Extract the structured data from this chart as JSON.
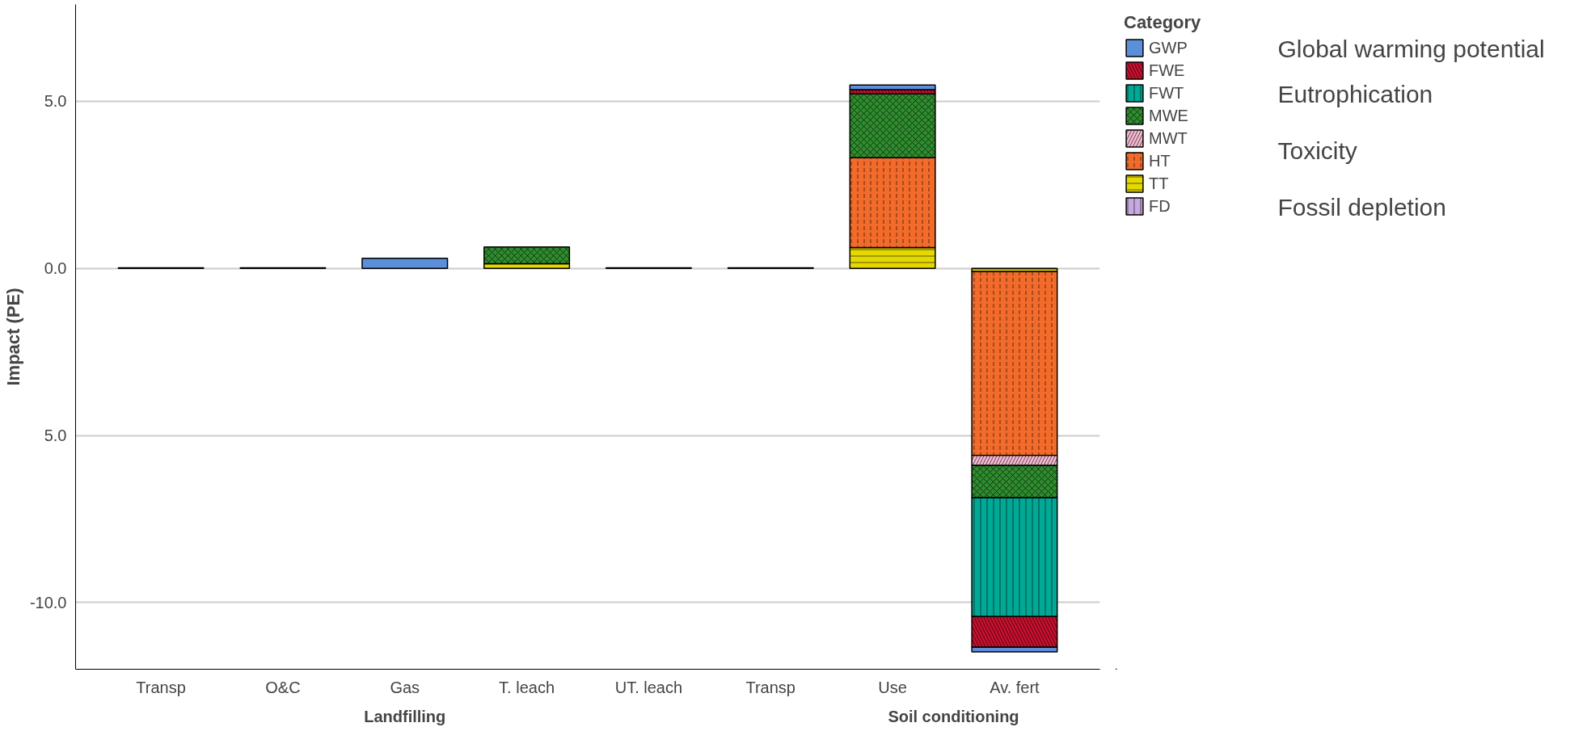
{
  "chart_data": {
    "type": "bar",
    "stacked": true,
    "ylabel": "Impact (PE)",
    "legend_title": "Category",
    "legend": "right",
    "grid": "y",
    "categories": [
      "Transp",
      "O&C",
      "Gas",
      "T. leach",
      "UT. leach",
      "Transp",
      "Use",
      "Av. fert"
    ],
    "ylim": [
      -12,
      7.9
    ],
    "yticks": [
      {
        "value": 5,
        "label": "5.0"
      },
      {
        "value": 0,
        "label": "0.0"
      },
      {
        "value": -5,
        "label": "5.0"
      },
      {
        "value": -10,
        "label": "-10.0"
      }
    ],
    "series": [
      {
        "name": "FD",
        "color": "#c8a8e0",
        "values": [
          null,
          null,
          null,
          null,
          null,
          null,
          null,
          null
        ]
      },
      {
        "name": "TT",
        "color": "#e5d800",
        "values": [
          null,
          null,
          null,
          0.14,
          null,
          null,
          0.62,
          -0.1
        ]
      },
      {
        "name": "HT",
        "color": "#f26b2a",
        "values": [
          null,
          null,
          null,
          null,
          null,
          null,
          2.69,
          -5.5
        ]
      },
      {
        "name": "MWT",
        "color": "#f4b8d0",
        "values": [
          null,
          null,
          null,
          null,
          null,
          null,
          null,
          -0.3
        ]
      },
      {
        "name": "MWE",
        "color": "#2e8b2e",
        "values": [
          null,
          null,
          null,
          0.5,
          null,
          null,
          1.91,
          -0.97
        ]
      },
      {
        "name": "FWT",
        "color": "#00a896",
        "values": [
          null,
          null,
          null,
          null,
          null,
          null,
          null,
          -3.55
        ]
      },
      {
        "name": "FWE",
        "color": "#c8102e",
        "values": [
          null,
          null,
          null,
          null,
          null,
          null,
          0.13,
          -0.92
        ]
      },
      {
        "name": "GWP",
        "color": "#5b8fd9",
        "values": [
          0.02,
          0.02,
          0.3,
          null,
          0.02,
          0.02,
          0.14,
          -0.14
        ]
      }
    ],
    "annotations": [
      "Landfilling",
      "Soil conditioning",
      "Global warming potential",
      "Eutrophication",
      "Toxicity",
      "Fossil depletion"
    ]
  }
}
